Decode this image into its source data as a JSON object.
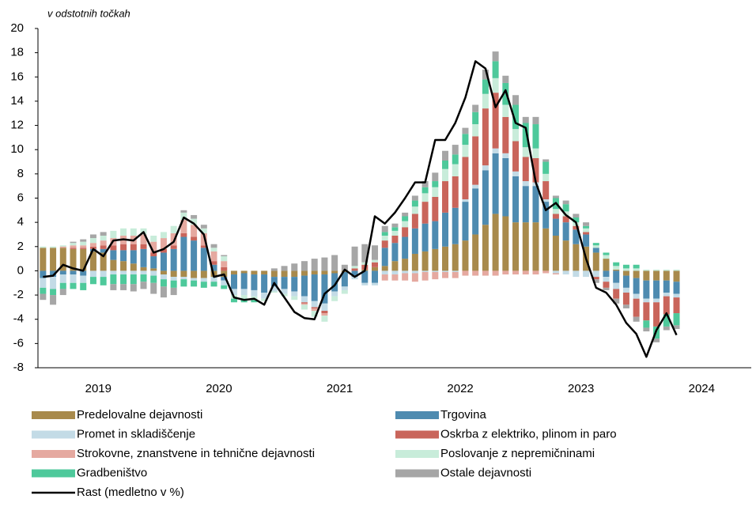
{
  "chart_data": {
    "type": "bar",
    "stacked": true,
    "axis_label": "v odstotnih točkah",
    "categories": [
      null,
      null,
      null,
      null,
      null,
      null,
      null,
      null,
      null,
      null,
      null,
      null,
      null,
      null,
      null,
      null,
      null,
      null,
      null,
      null,
      null,
      null,
      null,
      null,
      null,
      null,
      null,
      null,
      null,
      null,
      null,
      null,
      null,
      null,
      null,
      null,
      null,
      null,
      null,
      null,
      null,
      null,
      null,
      null,
      null,
      null,
      null,
      null,
      null,
      null,
      null,
      null,
      null,
      null,
      null,
      null,
      null,
      null,
      null,
      null,
      null,
      null,
      null,
      null
    ],
    "year_labels": [
      "2019",
      "2020",
      "2021",
      "2022",
      "2023",
      "2024"
    ],
    "ylim": [
      -8,
      20
    ],
    "yticks": [
      -8,
      -6,
      -4,
      -2,
      0,
      2,
      4,
      6,
      8,
      10,
      12,
      14,
      16,
      18,
      20
    ],
    "series": [
      {
        "name": "Predelovalne dejavnosti",
        "color": "#a88a4c",
        "values": [
          1.9,
          1.9,
          1.9,
          1.8,
          1.8,
          1.6,
          1.5,
          0.9,
          0.8,
          0.6,
          0.3,
          0.2,
          -0.3,
          -0.5,
          -0.5,
          -0.6,
          -0.6,
          -0.5,
          -0.5,
          -0.3,
          -0.2,
          -0.3,
          -0.3,
          -0.5,
          -0.5,
          -0.5,
          -0.4,
          -0.3,
          -0.3,
          -0.2,
          -0.1,
          0,
          0.1,
          0.3,
          0.4,
          0.8,
          1.0,
          1.4,
          1.6,
          1.8,
          2.0,
          2.2,
          2.5,
          3.0,
          3.8,
          4.7,
          4.5,
          4.0,
          4.0,
          4.0,
          3.5,
          2.9,
          2.5,
          2.2,
          2.0,
          1.5,
          1.0,
          0.1,
          -0.4,
          -0.6,
          -0.8,
          -0.8,
          -0.8,
          -0.9
        ]
      },
      {
        "name": "Trgovina",
        "color": "#4e8bb0",
        "values": [
          -0.6,
          -0.5,
          -0.3,
          -0.3,
          -0.4,
          0.2,
          0.3,
          0.8,
          0.9,
          1.1,
          1.5,
          1.0,
          1.5,
          1.8,
          2.8,
          2.5,
          1.9,
          0.5,
          -0.3,
          -1.2,
          -1.3,
          -1.3,
          -1.5,
          -0.8,
          -1.0,
          -1.2,
          -1.7,
          -2.2,
          -2.4,
          -1.5,
          -1.2,
          -0.5,
          -1.0,
          -1.0,
          1.5,
          1.5,
          1.8,
          2.1,
          2.3,
          2.3,
          2.8,
          3.0,
          3.2,
          3.8,
          4.5,
          5.0,
          4.8,
          3.8,
          3.0,
          3.0,
          2.2,
          1.4,
          1.5,
          1.2,
          1.0,
          0.4,
          -0.5,
          -1.0,
          -1.0,
          -1.3,
          -1.5,
          -1.5,
          -1.0,
          -1.0
        ]
      },
      {
        "name": "Promet in skladiščenje",
        "color": "#c3dbe6",
        "values": [
          -0.8,
          -1.0,
          -0.7,
          -0.7,
          -0.6,
          -0.5,
          -0.5,
          -0.3,
          -0.3,
          -0.3,
          -0.3,
          -0.4,
          -0.4,
          -0.3,
          -0.2,
          -0.2,
          -0.3,
          -0.4,
          -0.4,
          -0.5,
          -0.5,
          -0.5,
          -0.5,
          -0.4,
          -0.4,
          -0.4,
          -0.5,
          -0.5,
          -0.6,
          -0.4,
          -0.3,
          -0.2,
          -0.2,
          -0.2,
          -0.3,
          -0.3,
          -0.2,
          -0.2,
          -0.1,
          -0.1,
          -0.1,
          -0.1,
          0.2,
          0.3,
          0.4,
          0.4,
          0.4,
          0.4,
          0.4,
          0.3,
          0.2,
          -0.2,
          -0.3,
          -0.5,
          -0.5,
          -0.5,
          -0.4,
          -0.5,
          -0.4,
          -0.4,
          -0.3,
          -0.3,
          -0.3,
          -0.3
        ]
      },
      {
        "name": "Oskrba z elektriko, plinom in paro",
        "color": "#c9655b",
        "values": [
          0,
          0,
          0,
          0.1,
          0.1,
          0.2,
          0.3,
          0.4,
          0.5,
          0.5,
          0.4,
          0.3,
          0.3,
          0.3,
          0.3,
          0.3,
          0.2,
          0.3,
          0.3,
          0,
          0,
          0,
          0,
          0,
          0,
          0,
          -0.1,
          -0.1,
          -0.2,
          0,
          0,
          0.2,
          0.4,
          0.4,
          0.6,
          0.6,
          0.8,
          1.2,
          1.8,
          2.0,
          2.6,
          2.6,
          3.5,
          4.0,
          4.7,
          4.6,
          3.0,
          2.5,
          2.0,
          2.0,
          1.5,
          0.4,
          0.5,
          0.3,
          0.2,
          -0.2,
          -0.5,
          -0.8,
          -1.0,
          -1.5,
          -1.5,
          -2.0,
          -1.5,
          -1.3
        ]
      },
      {
        "name": "Strokovne, znanstvene in tehnične dejavnosti",
        "color": "#e5a9a0",
        "values": [
          0,
          0,
          0.1,
          0.2,
          0.2,
          0.3,
          0.4,
          0.6,
          0.7,
          0.7,
          0.8,
          0.9,
          0.9,
          1.0,
          1.1,
          1.0,
          1.0,
          0.8,
          0.5,
          0,
          0,
          0,
          0,
          0,
          0,
          0,
          -0.1,
          -0.2,
          -0.2,
          0,
          0,
          0,
          0,
          0,
          -0.5,
          -0.5,
          -0.6,
          -0.7,
          -0.7,
          -0.6,
          -0.5,
          -0.5,
          -0.4,
          -0.4,
          -0.4,
          -0.4,
          -0.3,
          -0.3,
          -0.3,
          -0.3,
          -0.2,
          -0.1,
          0,
          0,
          0,
          0,
          0,
          0,
          0,
          0,
          0,
          0,
          0,
          0
        ]
      },
      {
        "name": "Poslovanje z nepremičninami",
        "color": "#c8ecda",
        "values": [
          0.1,
          0.1,
          0.1,
          0.2,
          0.3,
          0.4,
          0.4,
          0.6,
          0.6,
          0.6,
          0.5,
          0.5,
          0.5,
          0.6,
          0.6,
          0.5,
          0.4,
          0.3,
          0.4,
          -0.3,
          -0.3,
          -0.3,
          -0.2,
          -0.1,
          -0.2,
          -0.3,
          -0.4,
          -0.5,
          -0.5,
          -0.4,
          -0.3,
          0.2,
          0.2,
          0.2,
          0.4,
          0.4,
          0.5,
          0.6,
          0.7,
          0.8,
          1.0,
          1.0,
          1.0,
          1.0,
          1.2,
          1.2,
          1.0,
          1.0,
          0.8,
          0.8,
          0.6,
          0.4,
          0.4,
          0.3,
          0.3,
          0.2,
          0.3,
          0.3,
          0.2,
          0.2,
          0.1,
          0.1,
          0.1,
          0.1
        ]
      },
      {
        "name": "Gradbeništvo",
        "color": "#4ec99b",
        "values": [
          -0.5,
          -0.5,
          -0.5,
          -0.5,
          -0.6,
          -0.6,
          -0.7,
          -0.8,
          -0.8,
          -0.8,
          -0.6,
          -0.6,
          -0.6,
          -0.6,
          -0.6,
          -0.5,
          -0.5,
          -0.4,
          -0.3,
          -0.3,
          -0.3,
          -0.2,
          0,
          0,
          0,
          0,
          0,
          0,
          0,
          0,
          0,
          0,
          0,
          0,
          0.3,
          0.3,
          0.4,
          0.5,
          0.5,
          0.5,
          0.7,
          0.8,
          0.9,
          1.0,
          1.2,
          1.4,
          1.8,
          2.0,
          2.0,
          2.0,
          1.0,
          0.9,
          0.6,
          0.4,
          0.2,
          0.2,
          0.2,
          0.3,
          0.3,
          0.3,
          -0.6,
          -1.0,
          -1.0,
          -1.0
        ]
      },
      {
        "name": "Ostale dejavnosti",
        "color": "#a6a6a6",
        "values": [
          -0.5,
          -0.8,
          -0.5,
          0.1,
          0.2,
          0.3,
          0.3,
          -0.5,
          -0.5,
          -0.6,
          -0.6,
          -0.9,
          -0.9,
          -0.6,
          0.2,
          0.3,
          0.3,
          0.3,
          0.1,
          0,
          0,
          0,
          0,
          0.2,
          0.4,
          0.6,
          0.8,
          1.0,
          1.1,
          1.3,
          0.5,
          1.6,
          1.5,
          1.2,
          0.5,
          0.3,
          0.3,
          0.4,
          0.5,
          0.7,
          0.8,
          0.8,
          0.5,
          0.6,
          0.8,
          0.8,
          0.6,
          0.8,
          0.5,
          0.6,
          0.2,
          0.2,
          0.3,
          0.3,
          0.3,
          -0.3,
          -0.2,
          -0.4,
          -0.3,
          -0.4,
          -0.3,
          -0.3,
          -0.3,
          -0.3
        ]
      },
      {
        "name": "Rast (medletno v %)",
        "type": "line",
        "color": "#000000",
        "values": [
          -0.5,
          -0.4,
          0.5,
          0.2,
          0.0,
          1.8,
          1.2,
          2.5,
          2.6,
          2.5,
          3.2,
          1.5,
          1.8,
          2.4,
          4.4,
          3.9,
          3.0,
          -0.5,
          -0.3,
          -2.2,
          -2.4,
          -2.3,
          -2.8,
          -1.0,
          -2.2,
          -3.4,
          -3.9,
          -4.0,
          -1.9,
          -1.2,
          0.1,
          -0.5,
          0.0,
          4.5,
          3.9,
          4.8,
          6.0,
          7.3,
          7.3,
          10.8,
          10.8,
          12.2,
          14.3,
          17.3,
          16.7,
          13.5,
          14.9,
          12.2,
          11.8,
          7.3,
          5.0,
          5.6,
          4.6,
          4.0,
          1.0,
          -1.4,
          -1.8,
          -2.8,
          -4.3,
          -5.2,
          -7.1,
          -4.9,
          -3.5,
          -5.3
        ]
      }
    ]
  }
}
